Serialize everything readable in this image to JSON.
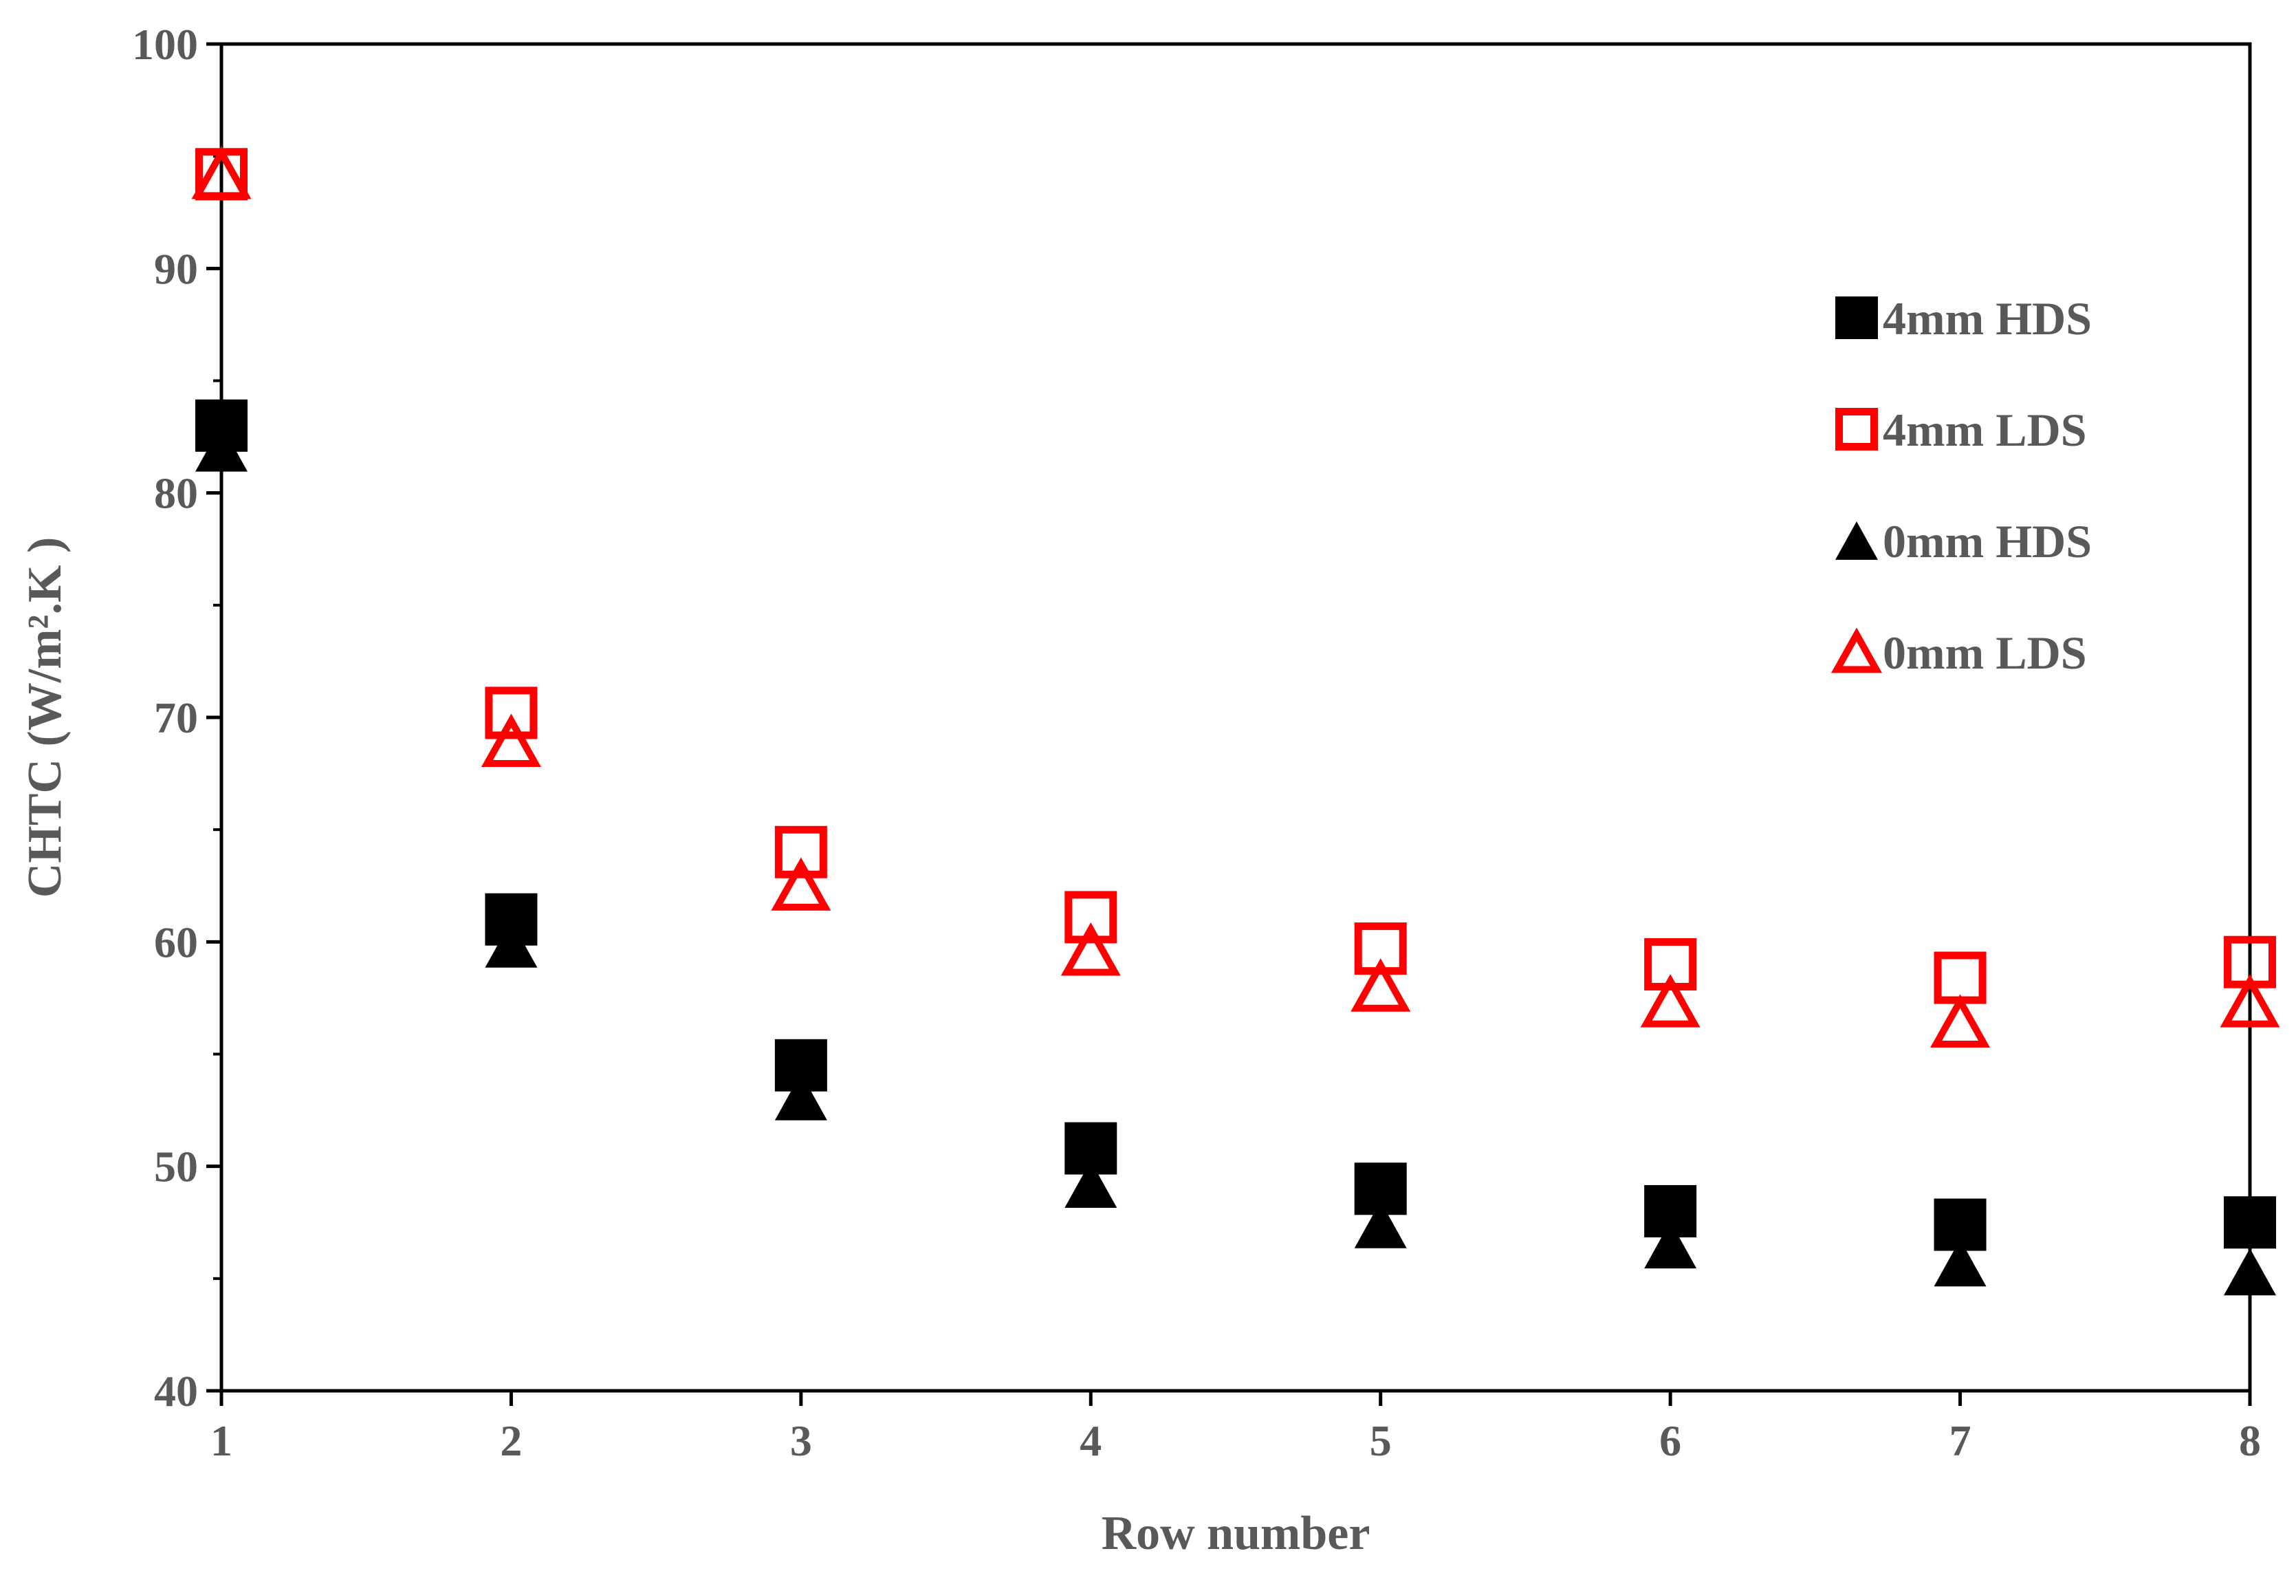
{
  "chart_data": {
    "type": "scatter",
    "xlabel": "Row number",
    "ylabel": "CHTC (W/m².K )",
    "xlim": [
      1,
      8
    ],
    "ylim": [
      40,
      100
    ],
    "xticks": [
      "1",
      "2",
      "3",
      "4",
      "5",
      "6",
      "7",
      "8"
    ],
    "yticks": [
      "40",
      "50",
      "60",
      "70",
      "80",
      "90",
      "100"
    ],
    "y_minor_step": 5,
    "grid": false,
    "legend_position": "right",
    "x": [
      1,
      2,
      3,
      4,
      5,
      6,
      7,
      8
    ],
    "series": [
      {
        "name": "4mm HDS",
        "marker": "square",
        "filled": true,
        "color": "#000000",
        "values": [
          83.0,
          61.0,
          54.5,
          50.8,
          49.0,
          48.0,
          47.4,
          47.5
        ]
      },
      {
        "name": "4mm LDS",
        "marker": "square",
        "filled": false,
        "color": "#ff0000",
        "values": [
          94.2,
          70.2,
          64.0,
          61.1,
          59.7,
          59.0,
          58.4,
          59.1
        ]
      },
      {
        "name": "0mm HDS",
        "marker": "triangle",
        "filled": true,
        "color": "#000000",
        "values": [
          82.0,
          59.9,
          53.1,
          49.2,
          47.4,
          46.5,
          45.7,
          45.3
        ]
      },
      {
        "name": "0mm LDS",
        "marker": "triangle",
        "filled": false,
        "color": "#ff0000",
        "values": [
          94.2,
          68.9,
          62.5,
          59.6,
          58.0,
          57.3,
          56.4,
          57.3
        ]
      }
    ]
  }
}
